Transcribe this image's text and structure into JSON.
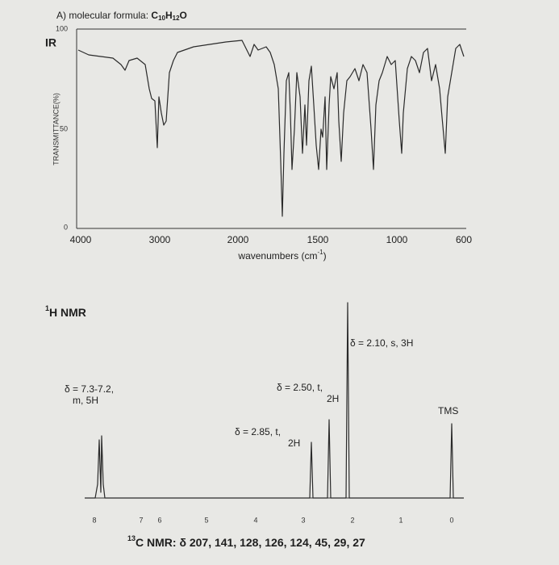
{
  "header": {
    "prefix": "A) molecular formula:",
    "formula": [
      "C",
      "10",
      "H",
      "12",
      "O"
    ]
  },
  "ir": {
    "label": "IR",
    "y_label": "TRANSMITTANCE(%)",
    "y_ticks": [
      "100",
      "50",
      "0"
    ],
    "x_ticks": [
      "4000",
      "3000",
      "2000",
      "1500",
      "1000",
      "600"
    ],
    "x_label": {
      "text": "wavenumbers (cm",
      "sup": "-1",
      "end": ")"
    }
  },
  "h_nmr": {
    "label": {
      "sup": "1",
      "text": "H NMR"
    },
    "annotations": [
      {
        "lines": [
          "δ = 7.3-7.2,",
          "m, 5H"
        ]
      },
      {
        "lines": [
          "δ = 2.50, t,",
          "2H"
        ]
      },
      {
        "lines": [
          "δ = 2.85, t,",
          "2H"
        ]
      },
      {
        "lines": [
          "δ = 2.10, s, 3H"
        ]
      },
      {
        "lines": [
          "TMS"
        ]
      }
    ],
    "x_ticks": [
      "8",
      "7",
      "6",
      "5",
      "4",
      "3",
      "2",
      "1",
      "0"
    ]
  },
  "c_nmr": {
    "sup": "13",
    "text": "C NMR: δ 207, 141, 128, 126, 124, 45, 29, 27"
  }
}
